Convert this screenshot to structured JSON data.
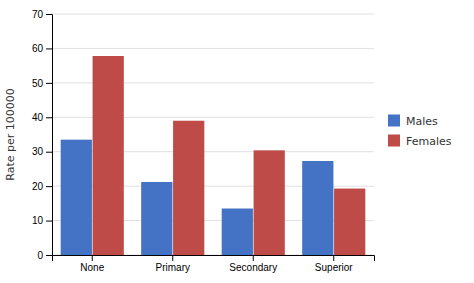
{
  "chart_data": {
    "type": "bar",
    "categories": [
      "None",
      "Primary",
      "Secondary",
      "Superior"
    ],
    "series": [
      {
        "name": "Males",
        "color": "#4472C4",
        "values": [
          33.5,
          21.2,
          13.5,
          27.3
        ]
      },
      {
        "name": "Females",
        "color": "#BE4B48",
        "values": [
          57.8,
          39.0,
          30.4,
          19.3
        ]
      }
    ],
    "ylabel": "Rate per 100000",
    "ylim": [
      0,
      70
    ],
    "yticks": [
      0,
      10,
      20,
      30,
      40,
      50,
      60,
      70
    ],
    "grid": true,
    "legend": "right"
  }
}
